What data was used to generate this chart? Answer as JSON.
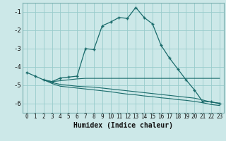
{
  "xlabel": "Humidex (Indice chaleur)",
  "bg_color": "#cce8e8",
  "grid_color": "#99cccc",
  "line_color": "#1a6b6b",
  "x_ticks": [
    0,
    1,
    2,
    3,
    4,
    5,
    6,
    7,
    8,
    9,
    10,
    11,
    12,
    13,
    14,
    15,
    16,
    17,
    18,
    19,
    20,
    21,
    22,
    23
  ],
  "y_ticks": [
    -6,
    -5,
    -4,
    -3,
    -2,
    -1
  ],
  "xlim": [
    -0.5,
    23.5
  ],
  "ylim": [
    -6.5,
    -0.5
  ],
  "series": [
    {
      "x": [
        0,
        1,
        2,
        3,
        4,
        5,
        6,
        7,
        8,
        9,
        10,
        11,
        12,
        13,
        14,
        15,
        16,
        17,
        18,
        19,
        20,
        21,
        22,
        23
      ],
      "y": [
        -4.3,
        -4.5,
        -4.7,
        -4.8,
        -4.6,
        -4.55,
        -4.5,
        -3.0,
        -3.05,
        -1.75,
        -1.55,
        -1.3,
        -1.35,
        -0.75,
        -1.3,
        -1.65,
        -2.8,
        -3.5,
        -4.1,
        -4.7,
        -5.25,
        -5.9,
        -5.9,
        -6.0
      ],
      "has_marker": true
    },
    {
      "x": [
        2,
        3,
        4,
        5,
        6,
        7,
        8,
        9,
        10,
        11,
        12,
        13,
        14,
        15,
        16,
        17,
        18,
        19,
        20,
        21,
        22,
        23
      ],
      "y": [
        -4.7,
        -4.8,
        -4.75,
        -4.7,
        -4.65,
        -4.62,
        -4.62,
        -4.62,
        -4.62,
        -4.62,
        -4.62,
        -4.62,
        -4.62,
        -4.62,
        -4.62,
        -4.62,
        -4.62,
        -4.62,
        -4.62,
        -4.62,
        -4.62,
        -4.62
      ],
      "has_marker": false
    },
    {
      "x": [
        2,
        3,
        4,
        5,
        6,
        7,
        8,
        9,
        10,
        11,
        12,
        13,
        14,
        15,
        16,
        17,
        18,
        19,
        20,
        21,
        22,
        23
      ],
      "y": [
        -4.7,
        -4.85,
        -4.95,
        -5.0,
        -5.05,
        -5.08,
        -5.1,
        -5.15,
        -5.2,
        -5.25,
        -5.3,
        -5.35,
        -5.4,
        -5.45,
        -5.5,
        -5.55,
        -5.6,
        -5.65,
        -5.7,
        -5.8,
        -5.92,
        -5.97
      ],
      "has_marker": false
    },
    {
      "x": [
        2,
        3,
        4,
        5,
        6,
        7,
        8,
        9,
        10,
        11,
        12,
        13,
        14,
        15,
        16,
        17,
        18,
        19,
        20,
        21,
        22,
        23
      ],
      "y": [
        -4.7,
        -4.9,
        -5.05,
        -5.1,
        -5.15,
        -5.2,
        -5.25,
        -5.3,
        -5.35,
        -5.42,
        -5.48,
        -5.52,
        -5.58,
        -5.62,
        -5.68,
        -5.72,
        -5.78,
        -5.82,
        -5.88,
        -5.95,
        -6.05,
        -6.1
      ],
      "has_marker": false
    }
  ]
}
